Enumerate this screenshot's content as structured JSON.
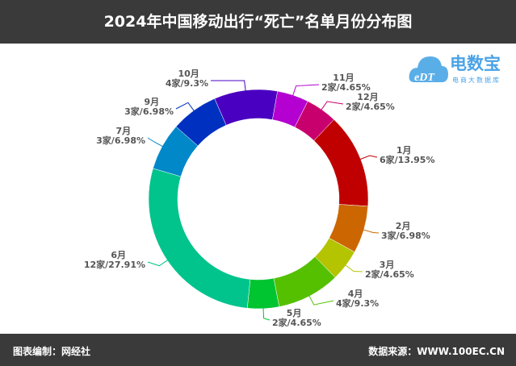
{
  "header": {
    "title": "2024年中国移动出行“死亡”名单月份分布图"
  },
  "logo": {
    "brand": "电数宝",
    "sub": "电商大数据库",
    "mark": "eDT"
  },
  "footer": {
    "left": "图表编制：网经社",
    "right": "数据来源：WWW.100EC.CN"
  },
  "chart_data": {
    "type": "pie",
    "donut": true,
    "title": "2024年中国移动出行“死亡”名单月份分布图",
    "categories": [
      "11月",
      "12月",
      "1月",
      "2月",
      "3月",
      "4月",
      "5月",
      "6月",
      "7月",
      "9月",
      "10月"
    ],
    "values": [
      2,
      2,
      6,
      3,
      2,
      4,
      2,
      12,
      3,
      3,
      4
    ],
    "labels": [
      "2家/4.65%",
      "2家/4.65%",
      "6家/13.95%",
      "3家/6.98%",
      "2家/4.65%",
      "4家/9.3%",
      "2家/4.65%",
      "12家/27.91%",
      "3家/6.98%",
      "3家/6.98%",
      "4家/9.3%"
    ],
    "colors": [
      "#b400d0",
      "#c8006e",
      "#c00000",
      "#cc6600",
      "#b4c400",
      "#55c000",
      "#00c430",
      "#00c48c",
      "#0088c8",
      "#0030c0",
      "#4a00c0"
    ],
    "legend": "none"
  }
}
